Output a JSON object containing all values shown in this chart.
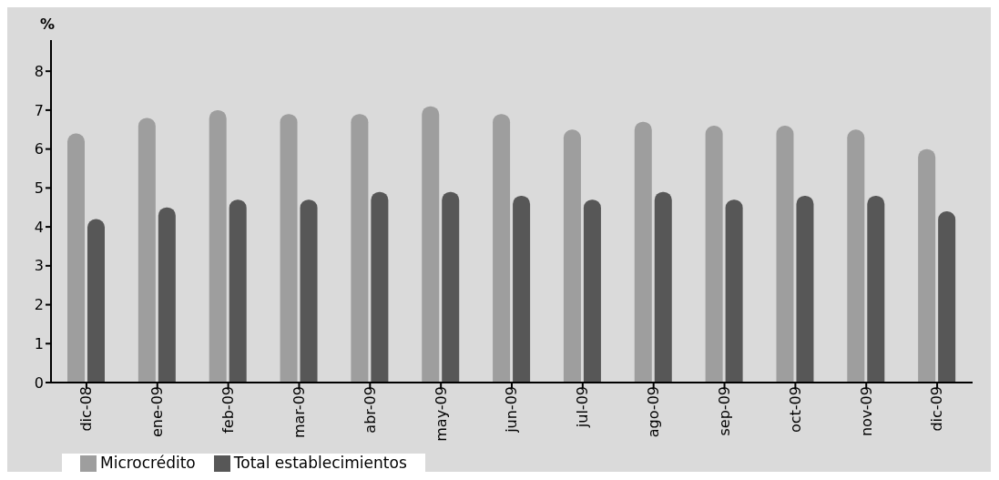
{
  "chart_data": {
    "type": "bar",
    "ylabel": "%",
    "categories": [
      "dic-08",
      "ene-09",
      "feb-09",
      "mar-09",
      "abr-09",
      "may-09",
      "jun-09",
      "jul-09",
      "ago-09",
      "sep-09",
      "oct-09",
      "nov-09",
      "dic-09"
    ],
    "series": [
      {
        "name": "Microcrédito",
        "color": "#9e9e9e",
        "values": [
          6.4,
          6.8,
          7.0,
          6.9,
          6.9,
          7.1,
          6.9,
          6.5,
          6.7,
          6.6,
          6.6,
          6.5,
          6.0
        ]
      },
      {
        "name": "Total establecimientos",
        "color": "#575757",
        "values": [
          4.2,
          4.5,
          4.7,
          4.7,
          4.9,
          4.9,
          4.8,
          4.7,
          4.9,
          4.7,
          4.8,
          4.8,
          4.4
        ]
      }
    ],
    "ylim": [
      0,
      8.8
    ],
    "yticks": [
      0,
      1,
      2,
      3,
      4,
      5,
      6,
      7,
      8
    ],
    "grid": false,
    "legend": "bottom left"
  }
}
